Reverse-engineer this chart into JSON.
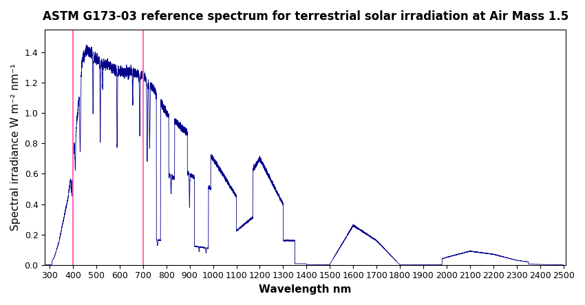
{
  "title": "ASTM G173-03 reference spectrum for terrestrial solar irradiation at Air Mass 1.5",
  "xlabel": "Wavelength nm",
  "ylabel": "Spectral irradiance W m⁻² nm⁻¹",
  "line_color": "#00008B",
  "vline_color": "#FF69B4",
  "vline1": 400,
  "vline2": 700,
  "xlim": [
    280,
    2510
  ],
  "ylim": [
    0,
    1.55
  ],
  "xticks": [
    300,
    400,
    500,
    600,
    700,
    800,
    900,
    1000,
    1100,
    1200,
    1300,
    1400,
    1500,
    1600,
    1700,
    1800,
    1900,
    2000,
    2100,
    2200,
    2300,
    2400,
    2500
  ],
  "yticks": [
    0.0,
    0.2,
    0.4,
    0.6,
    0.8,
    1.0,
    1.2,
    1.4
  ],
  "background_color": "#ffffff",
  "title_fontsize": 12,
  "label_fontsize": 11
}
